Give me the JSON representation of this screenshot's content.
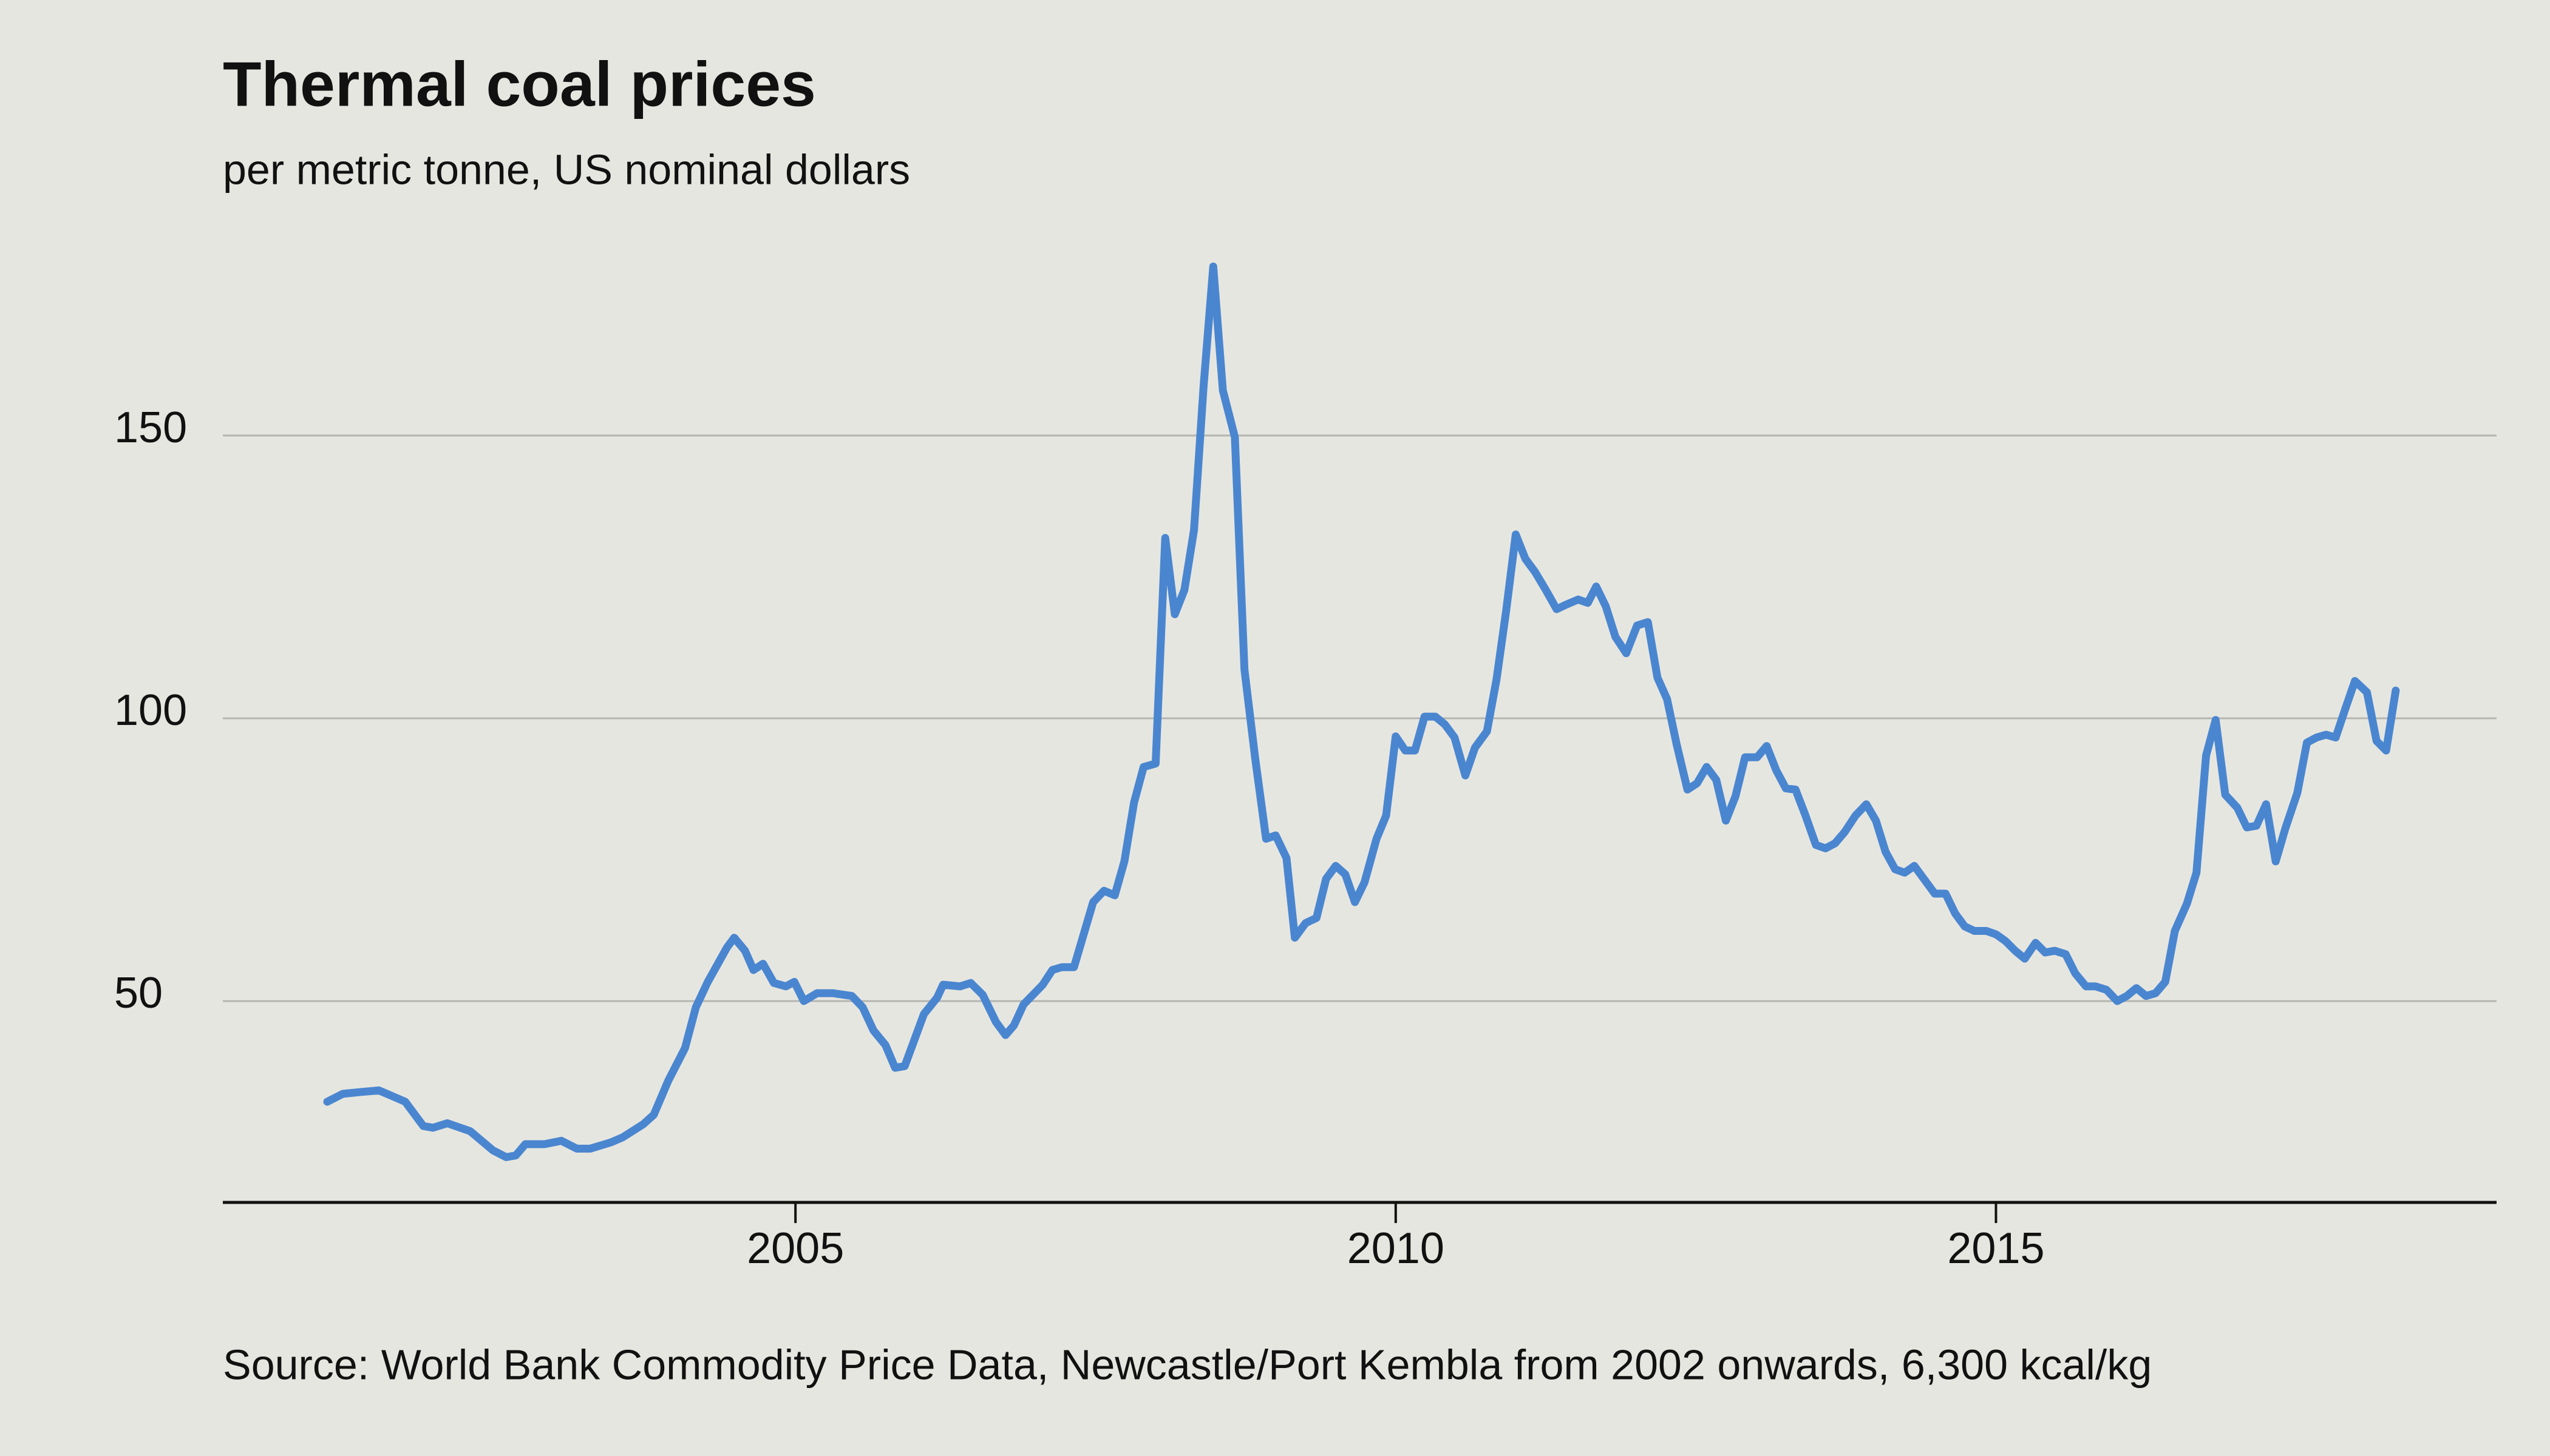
{
  "chart_data": {
    "type": "line",
    "title": "Thermal coal prices",
    "subtitle": "per metric tonne, US nominal dollars",
    "source": "Source: World Bank Commodity Price Data, Newcastle/Port Kembla from 2002 onwards, 6,300 kcal/kg",
    "xlim": [
      2000.23,
      2019.17
    ],
    "xticks": [
      2005,
      2010,
      2015
    ],
    "ylim": [
      14.4,
      190
    ],
    "yticks": [
      50,
      100,
      150
    ],
    "grid": true,
    "series": [
      {
        "name": "Thermal coal",
        "color": "#4a86d0",
        "x": [
          2001.1,
          2001.23,
          2001.37,
          2001.53,
          2001.63,
          2001.75,
          2001.9,
          2001.98,
          2002.1,
          2002.29,
          2002.48,
          2002.59,
          2002.67,
          2002.75,
          2002.91,
          2003.05,
          2003.18,
          2003.29,
          2003.46,
          2003.56,
          2003.73,
          2003.82,
          2003.94,
          2004.08,
          2004.17,
          2004.27,
          2004.43,
          2004.49,
          2004.58,
          2004.65,
          2004.73,
          2004.82,
          2004.92,
          2004.99,
          2005.07,
          2005.18,
          2005.31,
          2005.47,
          2005.56,
          2005.65,
          2005.75,
          2005.83,
          2005.91,
          2006.07,
          2006.18,
          2006.23,
          2006.37,
          2006.46,
          2006.56,
          2006.67,
          2006.75,
          2006.82,
          2006.9,
          2007.06,
          2007.14,
          2007.22,
          2007.32,
          2007.48,
          2007.57,
          2007.66,
          2007.74,
          2007.82,
          2007.9,
          2008.0,
          2008.08,
          2008.16,
          2008.24,
          2008.32,
          2008.4,
          2008.48,
          2008.56,
          2008.66,
          2008.74,
          2008.83,
          2008.92,
          2009.0,
          2009.09,
          2009.16,
          2009.25,
          2009.34,
          2009.42,
          2009.5,
          2009.58,
          2009.66,
          2009.74,
          2009.84,
          2009.92,
          2010.0,
          2010.08,
          2010.16,
          2010.24,
          2010.33,
          2010.41,
          2010.49,
          2010.58,
          2010.66,
          2010.76,
          2010.84,
          2010.92,
          2011.0,
          2011.08,
          2011.16,
          2011.25,
          2011.34,
          2011.42,
          2011.52,
          2011.6,
          2011.67,
          2011.75,
          2011.83,
          2011.92,
          2012.01,
          2012.1,
          2012.18,
          2012.26,
          2012.34,
          2012.43,
          2012.51,
          2012.59,
          2012.67,
          2012.75,
          2012.83,
          2012.91,
          2013.01,
          2013.09,
          2013.17,
          2013.25,
          2013.33,
          2013.41,
          2013.5,
          2013.58,
          2013.66,
          2013.74,
          2013.83,
          2013.92,
          2014.0,
          2014.08,
          2014.16,
          2014.24,
          2014.32,
          2014.4,
          2014.49,
          2014.58,
          2014.66,
          2014.74,
          2014.82,
          2014.92,
          2015.0,
          2015.08,
          2015.16,
          2015.24,
          2015.33,
          2015.41,
          2015.49,
          2015.58,
          2015.66,
          2015.75,
          2015.83,
          2015.92,
          2016.01,
          2016.09,
          2016.17,
          2016.25,
          2016.33,
          2016.41,
          2016.49,
          2016.59,
          2016.67,
          2016.75,
          2016.83,
          2016.91,
          2017.01,
          2017.09,
          2017.17,
          2017.25,
          2017.33,
          2017.41,
          2017.51,
          2017.59,
          2017.67,
          2017.75,
          2017.83,
          2017.91,
          2017.99,
          2018.09,
          2018.17,
          2018.25,
          2018.33
        ],
        "values": [
          32.2,
          33.6,
          33.9,
          34.2,
          33.3,
          32.2,
          27.9,
          27.6,
          28.4,
          27.0,
          23.6,
          22.4,
          22.7,
          24.7,
          24.7,
          25.3,
          23.9,
          23.9,
          25.0,
          25.9,
          28.2,
          29.9,
          35.9,
          41.7,
          48.9,
          53.4,
          59.5,
          61.2,
          58.9,
          55.5,
          56.6,
          53.2,
          52.6,
          53.4,
          50.0,
          51.4,
          51.4,
          50.9,
          48.9,
          44.8,
          42.2,
          38.2,
          38.5,
          47.7,
          50.6,
          52.9,
          52.6,
          53.2,
          51.1,
          46.3,
          44.0,
          45.7,
          49.4,
          52.9,
          55.5,
          56.0,
          56.0,
          67.5,
          69.5,
          68.7,
          74.7,
          85.1,
          91.4,
          92.0,
          131.9,
          118.4,
          122.7,
          133.3,
          158.9,
          179.9,
          158.0,
          149.7,
          108.6,
          92.8,
          78.7,
          79.3,
          75.3,
          61.2,
          63.8,
          64.7,
          71.6,
          73.9,
          72.4,
          67.5,
          71.0,
          78.7,
          82.8,
          96.8,
          94.3,
          94.3,
          100.3,
          100.3,
          98.9,
          96.6,
          89.9,
          94.8,
          97.7,
          106.9,
          119.0,
          132.5,
          128.2,
          125.9,
          122.7,
          119.3,
          120.1,
          121.0,
          120.4,
          123.3,
          119.8,
          114.4,
          111.5,
          116.4,
          117.0,
          107.2,
          103.4,
          95.4,
          87.4,
          88.5,
          91.4,
          89.1,
          81.9,
          86.2,
          93.1,
          93.1,
          95.1,
          90.8,
          87.6,
          87.4,
          83.0,
          77.6,
          77.0,
          77.9,
          79.9,
          82.8,
          84.8,
          81.9,
          76.4,
          73.3,
          72.7,
          73.9,
          71.6,
          69.0,
          69.0,
          65.5,
          63.2,
          62.4,
          62.4,
          61.8,
          60.6,
          58.9,
          57.5,
          60.3,
          58.6,
          58.9,
          58.3,
          54.9,
          52.6,
          52.6,
          52.0,
          50.0,
          50.9,
          52.3,
          50.9,
          51.4,
          53.4,
          62.4,
          67.2,
          72.7,
          93.4,
          99.7,
          86.5,
          84.2,
          80.7,
          81.0,
          84.8,
          74.7,
          80.5,
          86.8,
          95.7,
          96.6,
          97.1,
          96.6,
          101.7,
          106.6,
          104.6,
          96.0,
          94.3,
          104.9
        ]
      }
    ]
  }
}
